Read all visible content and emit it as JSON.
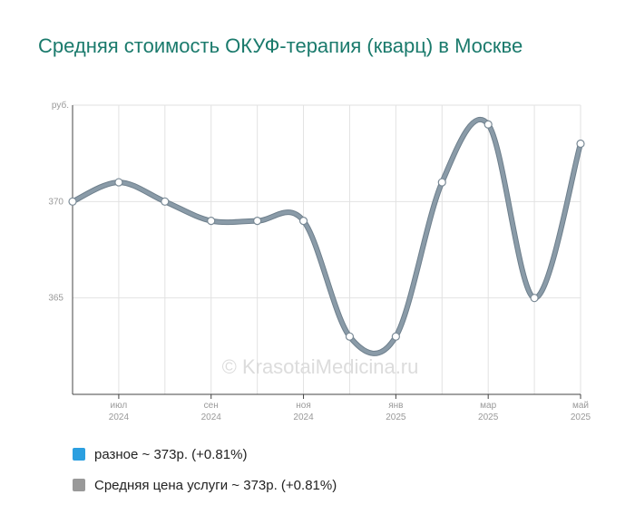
{
  "page": {
    "title": "Средняя стоимость ОКУФ-терапия (кварц) в Москве"
  },
  "watermark": "© KrasotaiMedicina.ru",
  "chart_data": {
    "type": "line",
    "title": "Средняя стоимость ОКУФ-терапия (кварц) в Москве",
    "y_unit_label": "руб.",
    "ylim": [
      360,
      375
    ],
    "y_ticks": [
      {
        "value": 365,
        "label": "365"
      },
      {
        "value": 370,
        "label": "370"
      }
    ],
    "x_ticks": [
      {
        "month": "2024-07",
        "line1": "июл",
        "line2": "2024"
      },
      {
        "month": "2024-09",
        "line1": "сен",
        "line2": "2024"
      },
      {
        "month": "2024-11",
        "line1": "ноя",
        "line2": "2024"
      },
      {
        "month": "2025-01",
        "line1": "янв",
        "line2": "2025"
      },
      {
        "month": "2025-03",
        "line1": "мар",
        "line2": "2025"
      },
      {
        "month": "2025-05",
        "line1": "май",
        "line2": "2025"
      }
    ],
    "xlim": [
      "2024-06",
      "2025-05"
    ],
    "grid": true,
    "series": [
      {
        "name": "Средняя цена услуги",
        "color": "#8a9ba8",
        "x": [
          "2024-06",
          "2024-07",
          "2024-08",
          "2024-09",
          "2024-10",
          "2024-11",
          "2024-12",
          "2025-01",
          "2025-02",
          "2025-03",
          "2025-04",
          "2025-05"
        ],
        "values": [
          370,
          371,
          370,
          369,
          369,
          369,
          363,
          363,
          371,
          374,
          365,
          373
        ]
      }
    ],
    "legend_placement": "bottom",
    "legend": [
      {
        "label": "разное ~ 373р. (+0.81%)",
        "color": "#2b9fe0"
      },
      {
        "label": "Средняя цена услуги ~ 373р. (+0.81%)",
        "color": "#999999"
      }
    ]
  }
}
